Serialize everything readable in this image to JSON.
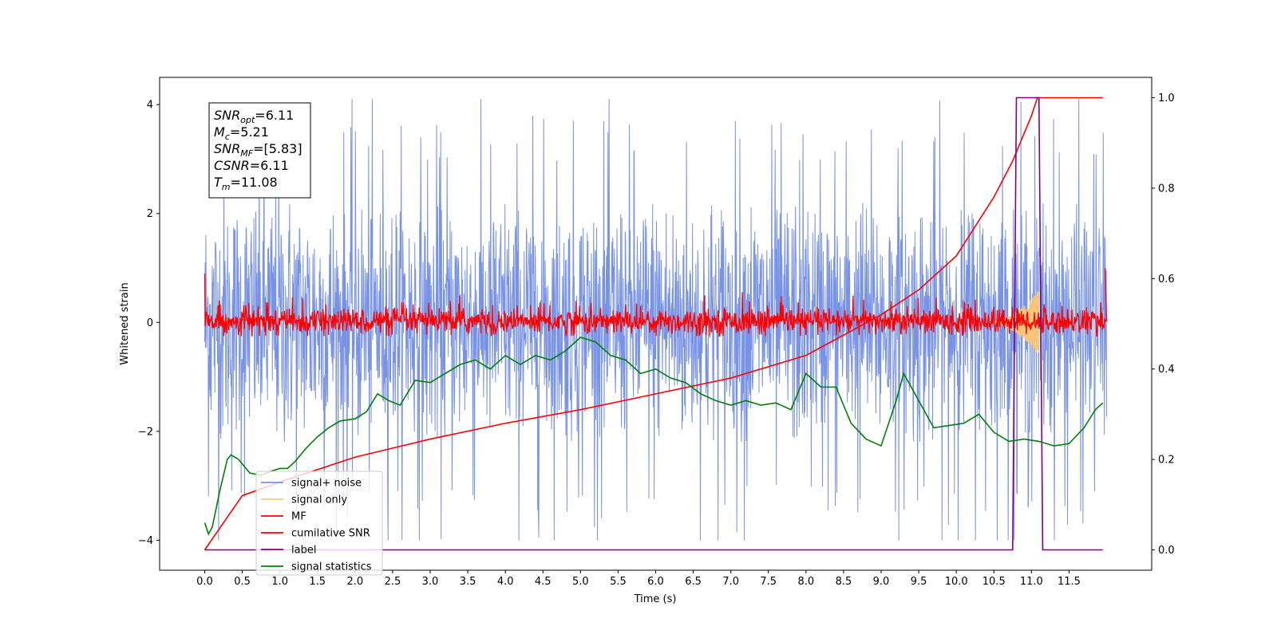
{
  "chart_data": {
    "type": "line",
    "xlabel": "Time (s)",
    "ylabel": "Whitened strain",
    "xlim": [
      -0.6,
      12.6
    ],
    "ylim": [
      -4.55,
      4.5
    ],
    "y2lim": [
      -0.045,
      1.045
    ],
    "x_ticks": [
      "0.0",
      "0.5",
      "1.0",
      "1.5",
      "2.0",
      "2.5",
      "3.0",
      "3.5",
      "4.0",
      "4.5",
      "5.0",
      "5.5",
      "6.0",
      "6.5",
      "7.0",
      "7.5",
      "8.0",
      "8.5",
      "9.0",
      "9.5",
      "10.0",
      "10.5",
      "11.0",
      "11.5"
    ],
    "y_ticks": [
      "4",
      "2",
      "0",
      "−2",
      "−4"
    ],
    "y2_ticks": [
      "1.0",
      "0.8",
      "0.6",
      "0.4",
      "0.2",
      "0.0"
    ],
    "grid": false,
    "legend_placement": "lower-left",
    "legend": [
      {
        "label": "signal+ noise",
        "color": "#7893e6"
      },
      {
        "label": "signal only",
        "color": "#f8c67a"
      },
      {
        "label": "MF",
        "color": "#ff0000"
      },
      {
        "label": "cumilative SNR",
        "color": "#ff0000"
      },
      {
        "label": "label",
        "color": "#800080"
      },
      {
        "label": "signal statistics",
        "color": "#008000"
      }
    ],
    "info_box": [
      {
        "base": "SNR",
        "sub": "opt",
        "rest": "=6.11"
      },
      {
        "base": "M",
        "sub": "c",
        "rest": "=5.21"
      },
      {
        "base": "SNR",
        "sub": "MF",
        "rest": "=[5.83]"
      },
      {
        "base": "CSNR",
        "sub": "",
        "rest": "=6.11"
      },
      {
        "base": "T",
        "sub": "m",
        "rest": "=11.08"
      }
    ],
    "series": [
      {
        "name": "signal+ noise",
        "axis": "left",
        "color": "#7893e6",
        "description": "whitened strain noise, approx range -4 to 4.1 over 0-12 s",
        "y_range": [
          -4.0,
          4.1
        ]
      },
      {
        "name": "signal only",
        "axis": "left",
        "color": "#f8c67a",
        "description": "chirp visible near 10.5-11.1 s",
        "x_range": [
          10.4,
          11.1
        ],
        "y_range": [
          -0.6,
          0.6
        ]
      },
      {
        "name": "MF",
        "axis": "left",
        "color": "#ff0000",
        "description": "matched filter output, band about -0.25 to 0.6, spike to 0.9 at start and 1.0 at end",
        "y_range": [
          -0.25,
          1.0
        ]
      },
      {
        "name": "cumilative SNR",
        "axis": "right",
        "x": [
          0.0,
          0.5,
          1.0,
          2.0,
          3.0,
          4.0,
          5.0,
          6.0,
          7.0,
          8.0,
          9.0,
          9.5,
          10.0,
          10.5,
          10.75,
          11.0,
          11.08,
          11.95
        ],
        "y": [
          0.0,
          0.12,
          0.15,
          0.205,
          0.245,
          0.28,
          0.31,
          0.345,
          0.38,
          0.43,
          0.52,
          0.575,
          0.65,
          0.78,
          0.86,
          0.96,
          1.0,
          1.0
        ]
      },
      {
        "name": "label",
        "axis": "right",
        "x": [
          0.0,
          10.75,
          10.8,
          11.1,
          11.15,
          11.95
        ],
        "y": [
          0.0,
          0.0,
          1.0,
          1.0,
          0.0,
          0.0
        ]
      },
      {
        "name": "signal statistics",
        "axis": "right",
        "x": [
          0.0,
          0.05,
          0.1,
          0.2,
          0.3,
          0.35,
          0.45,
          0.6,
          0.75,
          0.9,
          1.0,
          1.1,
          1.2,
          1.35,
          1.5,
          1.65,
          1.8,
          2.0,
          2.15,
          2.3,
          2.45,
          2.6,
          2.8,
          3.0,
          3.2,
          3.4,
          3.6,
          3.8,
          4.0,
          4.2,
          4.4,
          4.6,
          4.8,
          5.0,
          5.2,
          5.4,
          5.6,
          5.8,
          6.0,
          6.2,
          6.4,
          6.6,
          6.8,
          7.0,
          7.2,
          7.4,
          7.6,
          7.8,
          8.0,
          8.2,
          8.4,
          8.6,
          8.8,
          9.0,
          9.2,
          9.3,
          9.5,
          9.7,
          9.9,
          10.1,
          10.3,
          10.5,
          10.7,
          10.9,
          11.1,
          11.3,
          11.5,
          11.7,
          11.85,
          11.95
        ],
        "y": [
          0.06,
          0.035,
          0.05,
          0.13,
          0.2,
          0.21,
          0.2,
          0.17,
          0.165,
          0.175,
          0.18,
          0.18,
          0.195,
          0.225,
          0.25,
          0.27,
          0.285,
          0.29,
          0.305,
          0.345,
          0.33,
          0.32,
          0.375,
          0.37,
          0.39,
          0.41,
          0.42,
          0.4,
          0.43,
          0.41,
          0.43,
          0.42,
          0.44,
          0.47,
          0.46,
          0.43,
          0.42,
          0.39,
          0.4,
          0.38,
          0.37,
          0.345,
          0.33,
          0.32,
          0.33,
          0.32,
          0.325,
          0.31,
          0.39,
          0.36,
          0.36,
          0.28,
          0.245,
          0.23,
          0.33,
          0.39,
          0.33,
          0.27,
          0.275,
          0.28,
          0.3,
          0.26,
          0.24,
          0.245,
          0.24,
          0.23,
          0.235,
          0.27,
          0.31,
          0.325
        ]
      }
    ]
  }
}
